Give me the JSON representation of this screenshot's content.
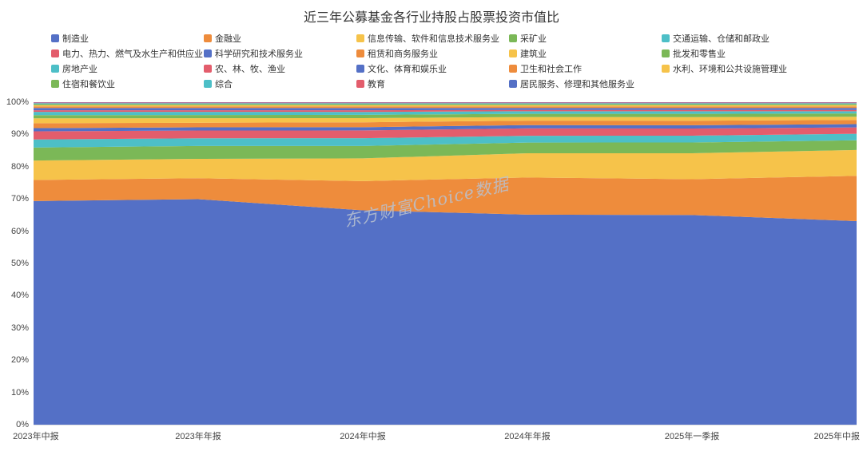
{
  "title": "近三年公募基金各行业持股占股票投资市值比",
  "watermark": "东方财富Choice数据",
  "chart_data": {
    "type": "area",
    "stacked": true,
    "percentage": true,
    "title": "近三年公募基金各行业持股占股票投资市值比",
    "xlabel": "",
    "ylabel": "",
    "ylim": [
      0,
      100
    ],
    "yticks": [
      "0%",
      "10%",
      "20%",
      "30%",
      "40%",
      "50%",
      "60%",
      "70%",
      "80%",
      "90%",
      "100%"
    ],
    "legend_position": "top",
    "grid": false,
    "categories": [
      "2023年中报",
      "2023年年报",
      "2024年中报",
      "2024年年报",
      "2025年一季报",
      "2025年中报"
    ],
    "series": [
      {
        "name": "制造业",
        "color": "#5470C6",
        "values": [
          69,
          70,
          66,
          65,
          64.5,
          63
        ]
      },
      {
        "name": "金融业",
        "color": "#EE8C3C",
        "values": [
          6.5,
          6.5,
          9,
          11.5,
          11,
          14
        ]
      },
      {
        "name": "信息传输、软件和信息技术服务业",
        "color": "#F6C34A",
        "values": [
          6,
          6,
          7,
          7.5,
          8,
          8
        ]
      },
      {
        "name": "采矿业",
        "color": "#7BB857",
        "values": [
          4,
          4,
          3.8,
          3.3,
          3.3,
          3
        ]
      },
      {
        "name": "交通运输、仓储和邮政业",
        "color": "#4DBFC7",
        "values": [
          2.5,
          2.4,
          2.4,
          2.1,
          2.1,
          2
        ]
      },
      {
        "name": "电力、热力、燃气及水生产和供应业",
        "color": "#E35D6C",
        "values": [
          2.5,
          2.4,
          2.4,
          2.3,
          2.2,
          2
        ]
      },
      {
        "name": "科学研究和技术服务业",
        "color": "#5470C6",
        "values": [
          1,
          1,
          1,
          1,
          1,
          1
        ]
      },
      {
        "name": "租赁和商务服务业",
        "color": "#EE8C3C",
        "values": [
          1.5,
          1.4,
          1.5,
          1.4,
          1.4,
          1.3
        ]
      },
      {
        "name": "建筑业",
        "color": "#F6C34A",
        "values": [
          1.5,
          1.4,
          1.3,
          1.1,
          1.1,
          1
        ]
      },
      {
        "name": "批发和零售业",
        "color": "#7BB857",
        "values": [
          1,
          1,
          1,
          1,
          1,
          1
        ]
      },
      {
        "name": "房地产业",
        "color": "#4DBFC7",
        "values": [
          1,
          1,
          0.9,
          0.8,
          0.8,
          0.7
        ]
      },
      {
        "name": "农、林、牧、渔业",
        "color": "#E35D6C",
        "values": [
          0.5,
          0.5,
          0.5,
          0.4,
          0.4,
          0.4
        ]
      },
      {
        "name": "文化、体育和娱乐业",
        "color": "#5470C6",
        "values": [
          0.7,
          0.7,
          0.7,
          0.6,
          0.6,
          0.6
        ]
      },
      {
        "name": "卫生和社会工作",
        "color": "#EE8C3C",
        "values": [
          0.5,
          0.5,
          0.5,
          0.5,
          0.5,
          0.5
        ]
      },
      {
        "name": "水利、环境和公共设施管理业",
        "color": "#F6C34A",
        "values": [
          0.4,
          0.4,
          0.4,
          0.4,
          0.4,
          0.4
        ]
      },
      {
        "name": "住宿和餐饮业",
        "color": "#7BB857",
        "values": [
          0.3,
          0.3,
          0.3,
          0.3,
          0.3,
          0.3
        ]
      },
      {
        "name": "综合",
        "color": "#4DBFC7",
        "values": [
          0.3,
          0.3,
          0.3,
          0.3,
          0.3,
          0.3
        ]
      },
      {
        "name": "教育",
        "color": "#E35D6C",
        "values": [
          0.2,
          0.2,
          0.2,
          0.2,
          0.2,
          0.2
        ]
      },
      {
        "name": "居民服务、修理和其他服务业",
        "color": "#5470C6",
        "values": [
          0.1,
          0.1,
          0.1,
          0.1,
          0.1,
          0.1
        ]
      }
    ]
  }
}
